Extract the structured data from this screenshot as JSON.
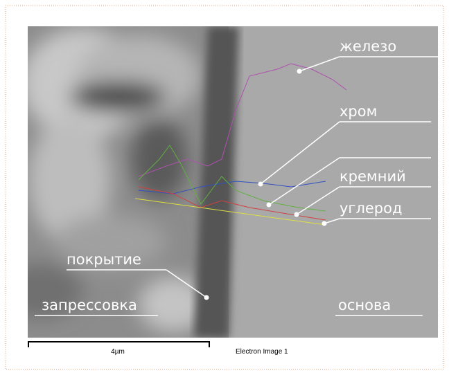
{
  "labels": {
    "iron": "железо",
    "chromium": "хром",
    "silicon": "кремний",
    "carbon": "углерод",
    "coating": "покрытие",
    "mounting": "запрессовка",
    "base": "основа"
  },
  "scale_bar": {
    "label": "4µm"
  },
  "caption": "Electron Image 1"
}
